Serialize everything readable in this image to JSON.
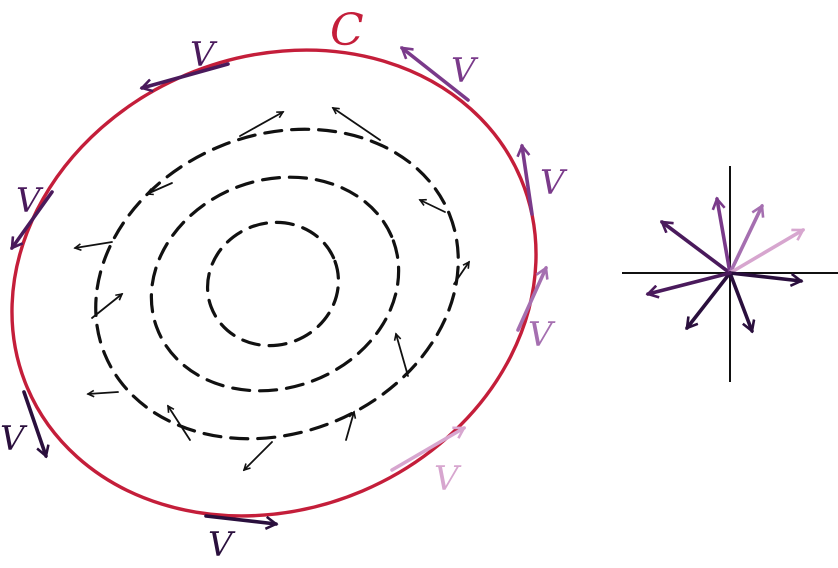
{
  "curve": {
    "label": "C",
    "color": "#c41e3a"
  },
  "vector_label": "V",
  "colors": {
    "dashed": "#111111",
    "small_arrows": "#111111",
    "axes": "#111111",
    "v_dark": "#2a0f3d",
    "v_deep": "#4a1a5c",
    "v_mid": "#7a3a8a",
    "v_soft": "#a56fb0",
    "v_light": "#d7a6cf"
  },
  "tangent_vectors": [
    {
      "shade": "v_deep",
      "label": "V"
    },
    {
      "shade": "v_mid",
      "label": "V"
    },
    {
      "shade": "v_mid",
      "label": "V"
    },
    {
      "shade": "v_soft",
      "label": "V"
    },
    {
      "shade": "v_light",
      "label": "V"
    },
    {
      "shade": "v_dark",
      "label": "V"
    },
    {
      "shade": "v_dark",
      "label": "V"
    },
    {
      "shade": "v_deep",
      "label": "V"
    }
  ]
}
